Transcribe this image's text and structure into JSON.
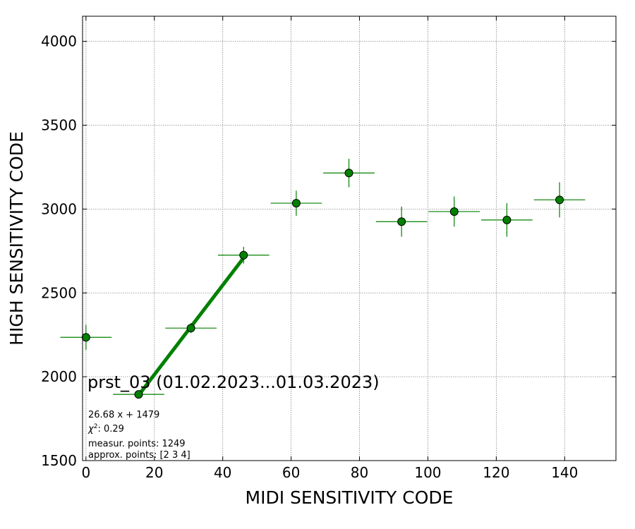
{
  "chart_data": {
    "type": "scatter",
    "xlabel": "MIDI SENSITIVITY CODE",
    "ylabel": "HIGH SENSITIVITY CODE",
    "xlim": [
      -1,
      155
    ],
    "ylim": [
      1500,
      4150
    ],
    "x_ticks": [
      0,
      20,
      40,
      60,
      80,
      100,
      120,
      140
    ],
    "y_ticks": [
      1500,
      2000,
      2500,
      3000,
      3500,
      4000
    ],
    "grid": true,
    "color": "#008000",
    "points": [
      {
        "x": 0,
        "y": 2235,
        "xerr": 7.5,
        "yerr": 75
      },
      {
        "x": 15.4,
        "y": 1895,
        "xerr": 7.5,
        "yerr": 20
      },
      {
        "x": 30.7,
        "y": 2290,
        "xerr": 7.5,
        "yerr": 30
      },
      {
        "x": 46.1,
        "y": 2725,
        "xerr": 7.5,
        "yerr": 50
      },
      {
        "x": 61.5,
        "y": 3035,
        "xerr": 7.5,
        "yerr": 75
      },
      {
        "x": 76.9,
        "y": 3215,
        "xerr": 7.5,
        "yerr": 85
      },
      {
        "x": 92.3,
        "y": 2925,
        "xerr": 7.5,
        "yerr": 90
      },
      {
        "x": 107.7,
        "y": 2985,
        "xerr": 7.5,
        "yerr": 90
      },
      {
        "x": 123.1,
        "y": 2935,
        "xerr": 7.5,
        "yerr": 100
      },
      {
        "x": 138.5,
        "y": 3055,
        "xerr": 7.5,
        "yerr": 105
      }
    ],
    "fit": {
      "slope": 26.68,
      "intercept": 1479,
      "x_range": [
        15.4,
        46.1
      ]
    },
    "annotations": {
      "title": "prst_03 (01.02.2023...01.03.2023)",
      "fit_equation": "26.68 x + 1479",
      "chi_label": "χ",
      "chi_sup": "2",
      "chi_value": ": 0.29",
      "measur_points": "measur. points: 1249",
      "approx_points": "approx. points: [2 3 4]"
    }
  }
}
